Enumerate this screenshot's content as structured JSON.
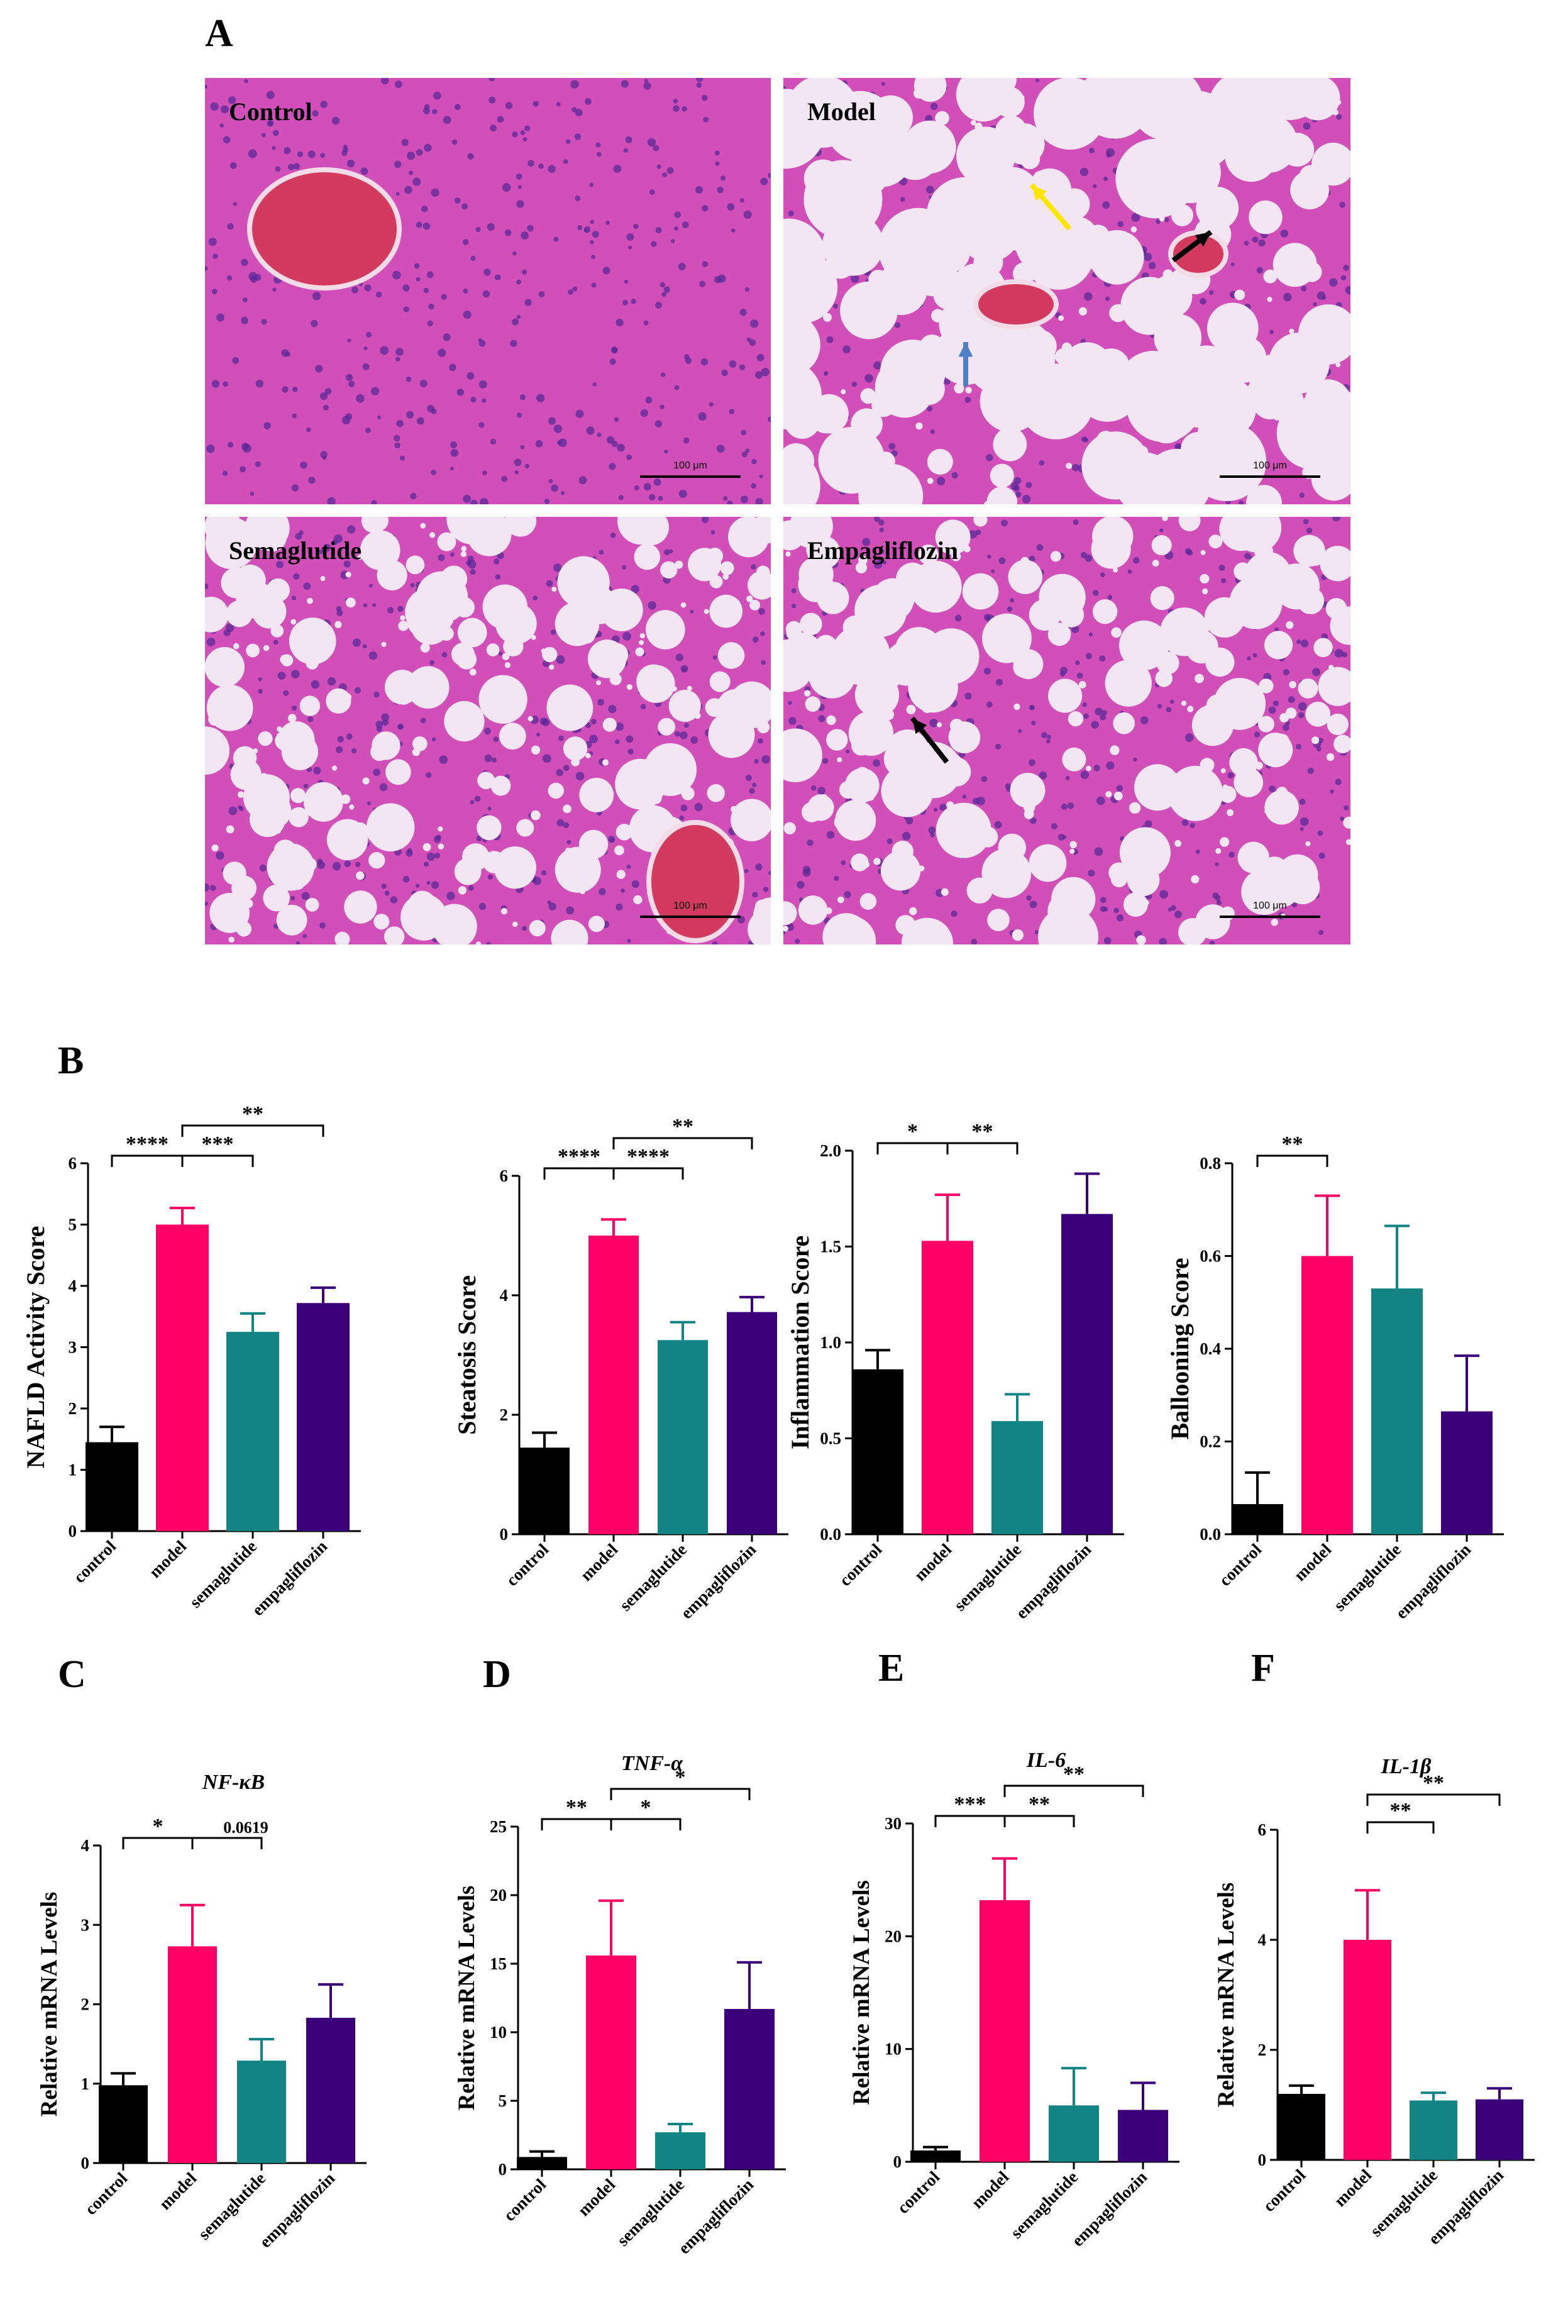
{
  "panel_letters": {
    "A": "A",
    "B": "B",
    "C": "C",
    "D": "D",
    "E": "E",
    "F": "F"
  },
  "micrographs": [
    {
      "label": "Control",
      "scalebar": "100 μm"
    },
    {
      "label": "Model",
      "scalebar": "100 μm"
    },
    {
      "label": "Semaglutide",
      "scalebar": "100 μm"
    },
    {
      "label": "Empagliflozin",
      "scalebar": "100 μm"
    }
  ],
  "colors": {
    "control": "#000000",
    "model": "#ff0066",
    "semaglutide": "#138484",
    "empagliflozin": "#3b0079",
    "tissue": "#d24fb9",
    "arrow_yellow": "#ffe600",
    "arrow_blue": "#4f7fc9",
    "arrow_black": "#000000"
  },
  "chart_data": [
    {
      "id": "nafld",
      "type": "bar",
      "title": "",
      "ylabel": "NAFLD Activity Score",
      "categories": [
        "control",
        "model",
        "semaglutide",
        "empagliflozin"
      ],
      "values": [
        1.45,
        5.0,
        3.25,
        3.72
      ],
      "errors": [
        0.25,
        0.27,
        0.3,
        0.25
      ],
      "ylim": [
        0,
        6
      ],
      "yticks": [
        "0",
        "1",
        "2",
        "3",
        "4",
        "5",
        "6"
      ],
      "significance": [
        {
          "from": 0,
          "to": 1,
          "label": "****"
        },
        {
          "from": 1,
          "to": 2,
          "label": "***"
        },
        {
          "from": 1,
          "to": 3,
          "label": "**"
        }
      ]
    },
    {
      "id": "steatosis",
      "type": "bar",
      "title": "",
      "ylabel": "Steatosis Score",
      "categories": [
        "control",
        "model",
        "semaglutide",
        "empagliflozin"
      ],
      "values": [
        1.45,
        5.0,
        3.25,
        3.72
      ],
      "errors": [
        0.25,
        0.27,
        0.3,
        0.25
      ],
      "ylim": [
        0,
        6
      ],
      "yticks": [
        "0",
        "2",
        "4",
        "6"
      ],
      "significance": [
        {
          "from": 0,
          "to": 1,
          "label": "****"
        },
        {
          "from": 1,
          "to": 2,
          "label": "****"
        },
        {
          "from": 1,
          "to": 3,
          "label": "**"
        }
      ]
    },
    {
      "id": "inflammation",
      "type": "bar",
      "title": "",
      "ylabel": "Inflammation Score",
      "categories": [
        "control",
        "model",
        "semaglutide",
        "empagliflozin"
      ],
      "values": [
        0.86,
        1.53,
        0.59,
        1.67
      ],
      "errors": [
        0.1,
        0.24,
        0.14,
        0.21
      ],
      "ylim": [
        0,
        2
      ],
      "yticks": [
        "0.0",
        "0.5",
        "1.0",
        "1.5",
        "2.0"
      ],
      "significance": [
        {
          "from": 0,
          "to": 1,
          "label": "*"
        },
        {
          "from": 1,
          "to": 2,
          "label": "**"
        }
      ]
    },
    {
      "id": "ballooning",
      "type": "bar",
      "title": "",
      "ylabel": "Ballooning Score",
      "categories": [
        "control",
        "model",
        "semaglutide",
        "empagliflozin"
      ],
      "values": [
        0.065,
        0.6,
        0.53,
        0.265
      ],
      "errors": [
        0.068,
        0.13,
        0.135,
        0.12
      ],
      "ylim": [
        0,
        0.8
      ],
      "yticks": [
        "0.0",
        "0.2",
        "0.4",
        "0.6",
        "0.8"
      ],
      "significance": [
        {
          "from": 0,
          "to": 1,
          "label": "**"
        }
      ]
    },
    {
      "id": "nfkb",
      "type": "bar",
      "title": "NF-κB",
      "ylabel": "Relative mRNA Levels",
      "categories": [
        "control",
        "model",
        "semaglutide",
        "empagliflozin"
      ],
      "values": [
        0.98,
        2.73,
        1.29,
        1.83
      ],
      "errors": [
        0.15,
        0.52,
        0.27,
        0.42
      ],
      "ylim": [
        0,
        4
      ],
      "yticks": [
        "0",
        "1",
        "2",
        "3",
        "4"
      ],
      "significance": [
        {
          "from": 0,
          "to": 1,
          "label": "*"
        },
        {
          "from": 1,
          "to": 2,
          "label": "0.0619"
        }
      ]
    },
    {
      "id": "tnfa",
      "type": "bar",
      "title": "TNF-α",
      "ylabel": "Relative mRNA Levels",
      "categories": [
        "control",
        "model",
        "semaglutide",
        "empagliflozin"
      ],
      "values": [
        0.9,
        15.6,
        2.7,
        11.7
      ],
      "errors": [
        0.4,
        4.0,
        0.6,
        3.4
      ],
      "ylim": [
        0,
        25
      ],
      "yticks": [
        "0",
        "5",
        "10",
        "15",
        "20",
        "25"
      ],
      "significance": [
        {
          "from": 0,
          "to": 1,
          "label": "**"
        },
        {
          "from": 1,
          "to": 2,
          "label": "*"
        },
        {
          "from": 1,
          "to": 3,
          "label": "*"
        }
      ]
    },
    {
      "id": "il6",
      "type": "bar",
      "title": "IL-6",
      "ylabel": "Relative mRNA Levels",
      "categories": [
        "control",
        "model",
        "semaglutide",
        "empagliflozin"
      ],
      "values": [
        1.0,
        23.2,
        5.0,
        4.6
      ],
      "errors": [
        0.3,
        3.7,
        3.3,
        2.4
      ],
      "ylim": [
        0,
        30
      ],
      "yticks": [
        "0",
        "10",
        "20",
        "30"
      ],
      "significance": [
        {
          "from": 0,
          "to": 1,
          "label": "***"
        },
        {
          "from": 1,
          "to": 2,
          "label": "**"
        },
        {
          "from": 1,
          "to": 3,
          "label": "**"
        }
      ]
    },
    {
      "id": "il1b",
      "type": "bar",
      "title": "IL-1β",
      "ylabel": "Relative mRNA Levels",
      "categories": [
        "control",
        "model",
        "semaglutide",
        "empagliflozin"
      ],
      "values": [
        1.2,
        4.0,
        1.08,
        1.1
      ],
      "errors": [
        0.15,
        0.9,
        0.14,
        0.2
      ],
      "ylim": [
        0,
        6
      ],
      "yticks": [
        "0",
        "2",
        "4",
        "6"
      ],
      "significance": [
        {
          "from": 1,
          "to": 2,
          "label": "**"
        },
        {
          "from": 1,
          "to": 3,
          "label": "**"
        }
      ]
    }
  ]
}
